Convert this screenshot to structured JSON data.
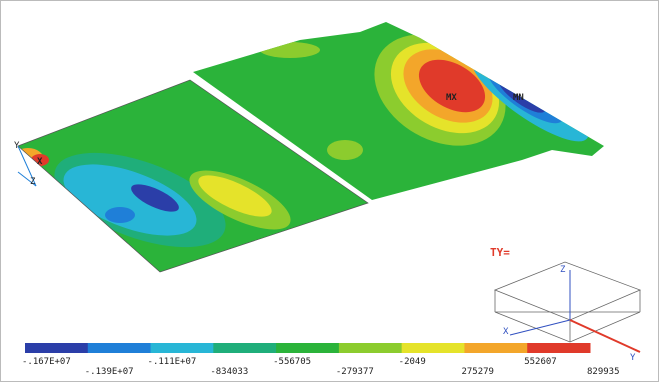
{
  "plot": {
    "component": "TY=",
    "max_label": "MX",
    "min_label": "MN",
    "node_marker": "X"
  },
  "left_triad": {
    "y": "Y",
    "z": "Z"
  },
  "triad": {
    "x": "X",
    "y": "Y",
    "z": "Z"
  },
  "legend": {
    "colors": [
      "#2b3ea8",
      "#1f7fd8",
      "#28b6d6",
      "#1fae7a",
      "#2bb33a",
      "#8ccc2e",
      "#e5e32a",
      "#f3a62a",
      "#e03a2a"
    ],
    "labels": [
      "-.167E+07",
      "-.139E+07",
      "-.111E+07",
      "-834033",
      "-556705",
      "-279377",
      "-2049",
      "275279",
      "552607",
      "829935"
    ]
  }
}
